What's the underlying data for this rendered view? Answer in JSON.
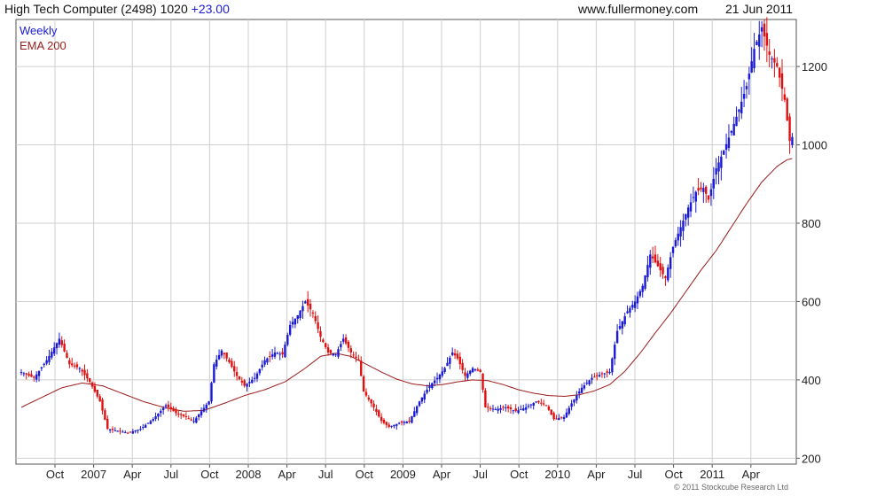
{
  "header": {
    "title": "High Tech Computer (2498) 1020",
    "change": "+23.00",
    "website": "www.fullermoney.com",
    "date": "21 Jun 2011"
  },
  "footer": {
    "credit": "© 2011 Stockcube Research Ltd"
  },
  "colors": {
    "up": "#1a1ad6",
    "down": "#e01010",
    "ema": "#9a1b1b",
    "grid": "#cfcfcf"
  },
  "chart_data": {
    "type": "candlestick",
    "title": "",
    "legend": [
      {
        "label": "Weekly",
        "color": "#1a1ad6"
      },
      {
        "label": "EMA 200",
        "color": "#9a1b1b"
      }
    ],
    "legend_position": "top-left",
    "grid": true,
    "ylim": [
      185,
      1320
    ],
    "y_ticks": [
      200,
      400,
      600,
      800,
      1000,
      1200
    ],
    "x_ticks": [
      "Oct",
      "2007",
      "Apr",
      "Jul",
      "Oct",
      "2008",
      "Apr",
      "Jul",
      "Oct",
      "2009",
      "Apr",
      "Jul",
      "Oct",
      "2010",
      "Apr",
      "Jul",
      "Oct",
      "2011",
      "Apr"
    ],
    "price_keypoints": [
      [
        0,
        420
      ],
      [
        5,
        405
      ],
      [
        10,
        450
      ],
      [
        15,
        505
      ],
      [
        19,
        440
      ],
      [
        23,
        430
      ],
      [
        27,
        395
      ],
      [
        31,
        345
      ],
      [
        34,
        275
      ],
      [
        38,
        270
      ],
      [
        42,
        265
      ],
      [
        47,
        275
      ],
      [
        52,
        300
      ],
      [
        57,
        335
      ],
      [
        61,
        315
      ],
      [
        65,
        305
      ],
      [
        68,
        295
      ],
      [
        71,
        320
      ],
      [
        74,
        345
      ],
      [
        76,
        440
      ],
      [
        79,
        475
      ],
      [
        82,
        445
      ],
      [
        85,
        410
      ],
      [
        88,
        385
      ],
      [
        92,
        405
      ],
      [
        96,
        450
      ],
      [
        100,
        470
      ],
      [
        103,
        465
      ],
      [
        106,
        540
      ],
      [
        109,
        565
      ],
      [
        112,
        600
      ],
      [
        115,
        570
      ],
      [
        118,
        510
      ],
      [
        121,
        470
      ],
      [
        124,
        465
      ],
      [
        127,
        505
      ],
      [
        130,
        470
      ],
      [
        133,
        450
      ],
      [
        135,
        370
      ],
      [
        139,
        330
      ],
      [
        142,
        295
      ],
      [
        145,
        280
      ],
      [
        149,
        290
      ],
      [
        153,
        295
      ],
      [
        157,
        345
      ],
      [
        161,
        385
      ],
      [
        164,
        405
      ],
      [
        167,
        430
      ],
      [
        170,
        470
      ],
      [
        172,
        455
      ],
      [
        175,
        410
      ],
      [
        178,
        430
      ],
      [
        181,
        420
      ],
      [
        183,
        330
      ],
      [
        187,
        325
      ],
      [
        191,
        330
      ],
      [
        195,
        320
      ],
      [
        199,
        330
      ],
      [
        203,
        345
      ],
      [
        207,
        335
      ],
      [
        210,
        300
      ],
      [
        214,
        305
      ],
      [
        217,
        340
      ],
      [
        221,
        380
      ],
      [
        225,
        405
      ],
      [
        229,
        415
      ],
      [
        232,
        420
      ],
      [
        235,
        525
      ],
      [
        239,
        575
      ],
      [
        242,
        600
      ],
      [
        245,
        640
      ],
      [
        248,
        720
      ],
      [
        251,
        690
      ],
      [
        254,
        660
      ],
      [
        257,
        740
      ],
      [
        260,
        790
      ],
      [
        263,
        840
      ],
      [
        266,
        880
      ],
      [
        269,
        890
      ],
      [
        271,
        860
      ],
      [
        274,
        940
      ],
      [
        277,
        985
      ],
      [
        280,
        1035
      ],
      [
        283,
        1090
      ],
      [
        286,
        1150
      ],
      [
        289,
        1245
      ],
      [
        292,
        1300
      ],
      [
        295,
        1230
      ],
      [
        298,
        1200
      ],
      [
        301,
        1115
      ],
      [
        303,
        1010
      ],
      [
        304,
        1020
      ]
    ],
    "ema_keypoints": [
      [
        0,
        330
      ],
      [
        8,
        355
      ],
      [
        16,
        380
      ],
      [
        24,
        392
      ],
      [
        32,
        385
      ],
      [
        40,
        365
      ],
      [
        48,
        345
      ],
      [
        56,
        330
      ],
      [
        64,
        320
      ],
      [
        72,
        322
      ],
      [
        80,
        340
      ],
      [
        88,
        360
      ],
      [
        96,
        375
      ],
      [
        104,
        395
      ],
      [
        112,
        430
      ],
      [
        118,
        460
      ],
      [
        124,
        468
      ],
      [
        130,
        460
      ],
      [
        136,
        440
      ],
      [
        142,
        420
      ],
      [
        148,
        402
      ],
      [
        154,
        390
      ],
      [
        160,
        385
      ],
      [
        166,
        388
      ],
      [
        172,
        395
      ],
      [
        178,
        400
      ],
      [
        184,
        398
      ],
      [
        190,
        388
      ],
      [
        196,
        375
      ],
      [
        202,
        366
      ],
      [
        208,
        360
      ],
      [
        214,
        358
      ],
      [
        220,
        362
      ],
      [
        226,
        372
      ],
      [
        232,
        388
      ],
      [
        238,
        422
      ],
      [
        244,
        468
      ],
      [
        250,
        520
      ],
      [
        256,
        570
      ],
      [
        262,
        625
      ],
      [
        268,
        680
      ],
      [
        274,
        730
      ],
      [
        280,
        790
      ],
      [
        286,
        850
      ],
      [
        292,
        905
      ],
      [
        298,
        945
      ],
      [
        302,
        962
      ],
      [
        304,
        965
      ]
    ]
  }
}
